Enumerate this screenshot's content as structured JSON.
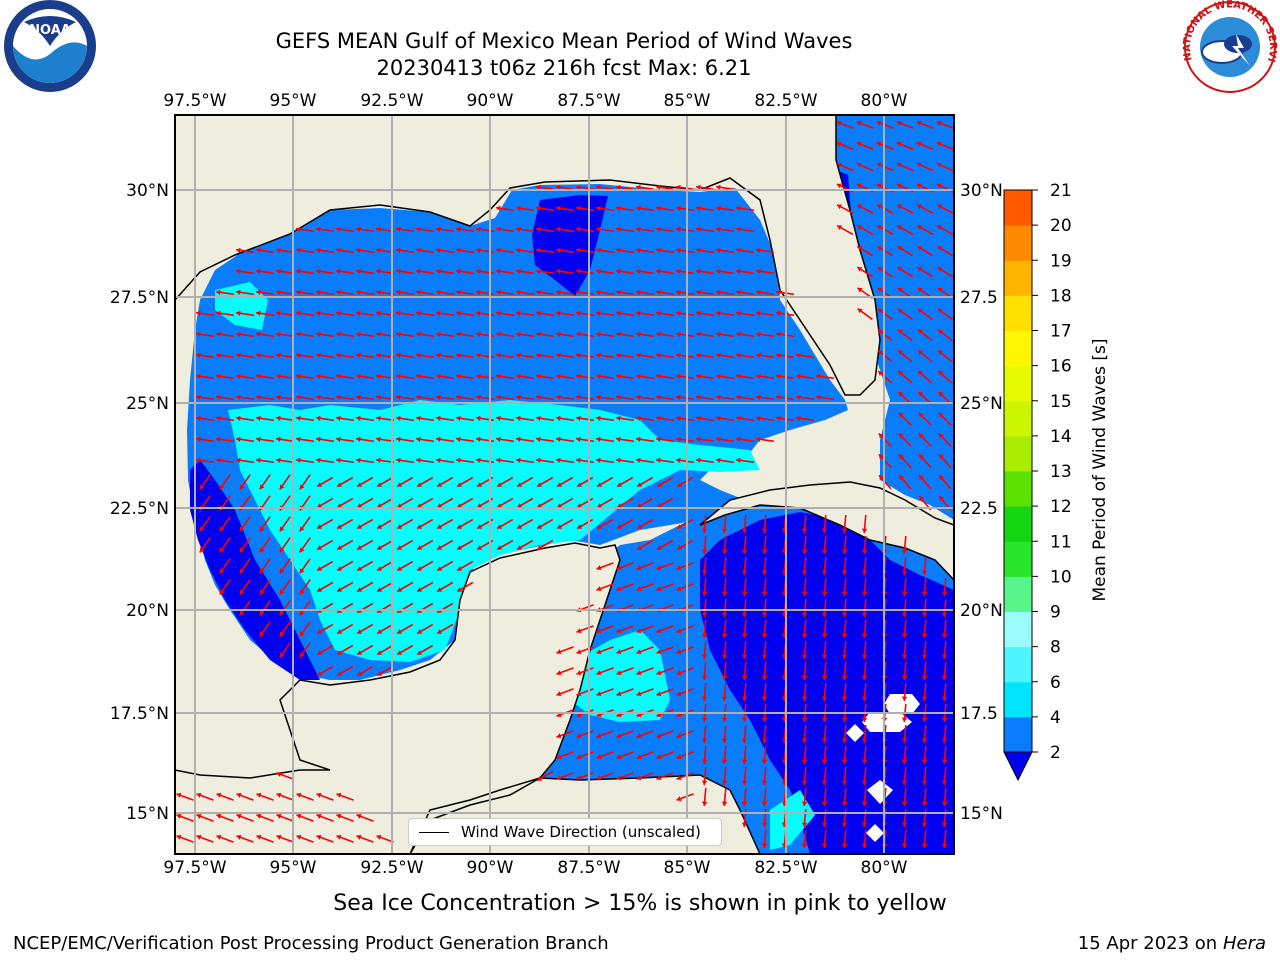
{
  "title_line1": "GEFS MEAN Gulf of Mexico Mean Period of Wind Waves",
  "title_line2": "20230413 t06z 216h fcst   Max: 6.21",
  "lon_labels": [
    "97.5°W",
    "95°W",
    "92.5°W",
    "90°W",
    "87.5°W",
    "85°W",
    "82.5°W",
    "80°W"
  ],
  "lat_labels_left": [
    "30°N",
    "27.5°N",
    "25°N",
    "22.5°N",
    "20°N",
    "17.5°N",
    "15°N"
  ],
  "lat_labels_right": [
    "30°N",
    "27.5",
    "25°N",
    "22.5",
    "20°N",
    "17.5",
    "15°N"
  ],
  "legend_label": "Wind Wave Direction (unscaled)",
  "colorbar": {
    "label": "Mean Period of Wind Waves [s]",
    "ticks": [
      "2",
      "4",
      "6",
      "8",
      "9",
      "10",
      "11",
      "12",
      "13",
      "14",
      "15",
      "16",
      "17",
      "18",
      "19",
      "20",
      "21"
    ],
    "colors": [
      "#0a7dfd",
      "#00e5ff",
      "#4cf5ff",
      "#9cfcfc",
      "#58f58a",
      "#2ae62a",
      "#11d611",
      "#5be000",
      "#a9ec00",
      "#ccf500",
      "#e8fa00",
      "#fff700",
      "#ffe000",
      "#ffb400",
      "#ff8a00",
      "#ff5a00",
      "#ff2a00",
      "#ff0000"
    ],
    "under_color": "#0000f0"
  },
  "ice_note": "Sea Ice Concentration > 15% is shown in pink to yellow",
  "footer_left": "NCEP/EMC/Verification Post Processing Product Generation Branch",
  "footer_right_prefix": "15 Apr 2023 on ",
  "footer_right_host": "Hera",
  "colors": {
    "land": "#efedde",
    "deep_blue": "#0000f0",
    "mid_blue": "#0a7dfd",
    "cyan": "#00ffff",
    "arrow": "#ff0000",
    "grid": "#b0b0b0"
  },
  "logos": {
    "left": "NOAA",
    "right": "NATIONAL WEATHER SERVICE"
  }
}
